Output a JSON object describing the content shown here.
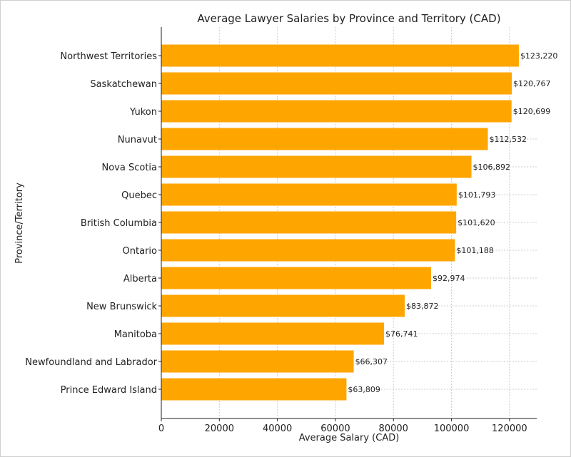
{
  "chart_data": {
    "type": "bar",
    "orientation": "horizontal",
    "title": "Average Lawyer Salaries by Province and Territory (CAD)",
    "xlabel": "Average Salary (CAD)",
    "ylabel": "Province/Territory",
    "categories": [
      "Northwest Territories",
      "Saskatchewan",
      "Yukon",
      "Nunavut",
      "Nova Scotia",
      "Quebec",
      "British Columbia",
      "Ontario",
      "Alberta",
      "New Brunswick",
      "Manitoba",
      "Newfoundland and Labrador",
      "Prince Edward Island"
    ],
    "values": [
      123220,
      120767,
      120699,
      112532,
      106892,
      101793,
      101620,
      101188,
      92974,
      83872,
      76741,
      66307,
      63809
    ],
    "data_labels": [
      "$123,220",
      "$120,767",
      "$120,699",
      "$112,532",
      "$106,892",
      "$101,793",
      "$101,620",
      "$101,188",
      "$92,974",
      "$83,872",
      "$76,741",
      "$66,307",
      "$63,809"
    ],
    "xticks": [
      "0",
      "20000",
      "40000",
      "60000",
      "80000",
      "100000",
      "120000"
    ],
    "xlim": [
      0,
      129381
    ],
    "grid": true,
    "bar_color": "#FFA500"
  }
}
